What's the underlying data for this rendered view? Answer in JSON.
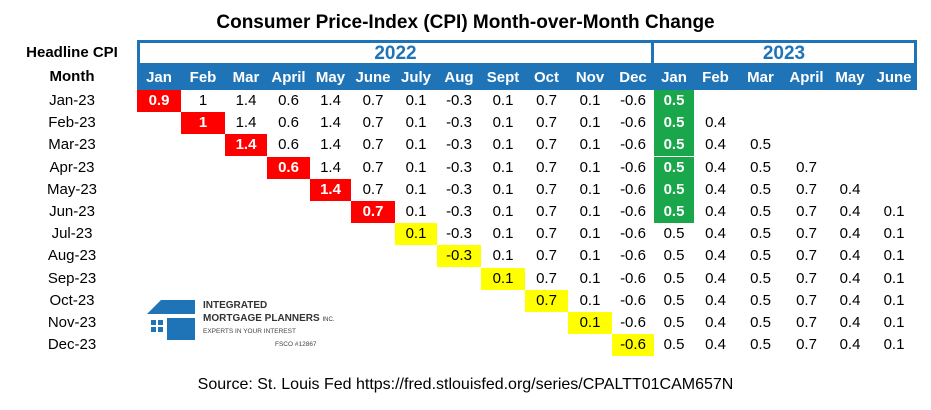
{
  "title": "Consumer Price-Index (CPI) Month-over-Month Change",
  "header_label_1": "Headline CPI",
  "header_label_2": "Month",
  "years": [
    "2022",
    "2023"
  ],
  "source": "Source: St. Louis Fed https://fred.stlouisfed.org/series/CPALTT01CAM657N",
  "logo": {
    "line1": "INTEGRATED",
    "line2": "MORTGAGE PLANNERS",
    "line2_suffix": "INC.",
    "tagline": "EXPERTS IN YOUR INTEREST",
    "license": "FSCO #12867"
  },
  "colors": {
    "header_blue": "#1f73b7",
    "red": "#ff0000",
    "yellow": "#ffff00",
    "green": "#1aa64a"
  },
  "chart_data": {
    "type": "table",
    "columns": [
      "Jan",
      "Feb",
      "Mar",
      "April",
      "May",
      "June",
      "July",
      "Aug",
      "Sept",
      "Oct",
      "Nov",
      "Dec",
      "Jan",
      "Feb",
      "Mar",
      "April",
      "May",
      "June"
    ],
    "column_years": [
      "2022",
      "2022",
      "2022",
      "2022",
      "2022",
      "2022",
      "2022",
      "2022",
      "2022",
      "2022",
      "2022",
      "2022",
      "2023",
      "2023",
      "2023",
      "2023",
      "2023",
      "2023"
    ],
    "rows": [
      {
        "label": "Jan-23",
        "values": [
          "0.9",
          "1",
          "1.4",
          "0.6",
          "1.4",
          "0.7",
          "0.1",
          "-0.3",
          "0.1",
          "0.7",
          "0.1",
          "-0.6",
          "0.5"
        ]
      },
      {
        "label": "Feb-23",
        "values": [
          "1",
          "1.4",
          "0.6",
          "1.4",
          "0.7",
          "0.1",
          "-0.3",
          "0.1",
          "0.7",
          "0.1",
          "-0.6",
          "0.5",
          "0.4"
        ]
      },
      {
        "label": "Mar-23",
        "values": [
          "1.4",
          "0.6",
          "1.4",
          "0.7",
          "0.1",
          "-0.3",
          "0.1",
          "0.7",
          "0.1",
          "-0.6",
          "0.5",
          "0.4",
          "0.5"
        ]
      },
      {
        "label": "Apr-23",
        "values": [
          "0.6",
          "1.4",
          "0.7",
          "0.1",
          "-0.3",
          "0.1",
          "0.7",
          "0.1",
          "-0.6",
          "0.5",
          "0.4",
          "0.5",
          "0.7"
        ]
      },
      {
        "label": "May-23",
        "values": [
          "1.4",
          "0.7",
          "0.1",
          "-0.3",
          "0.1",
          "0.7",
          "0.1",
          "-0.6",
          "0.5",
          "0.4",
          "0.5",
          "0.7",
          "0.4"
        ]
      },
      {
        "label": "Jun-23",
        "values": [
          "0.7",
          "0.1",
          "-0.3",
          "0.1",
          "0.7",
          "0.1",
          "-0.6",
          "0.5",
          "0.4",
          "0.5",
          "0.7",
          "0.4",
          "0.1"
        ]
      },
      {
        "label": "Jul-23",
        "values": [
          "0.1",
          "-0.3",
          "0.1",
          "0.7",
          "0.1",
          "-0.6",
          "0.5",
          "0.4",
          "0.5",
          "0.7",
          "0.4",
          "0.1"
        ]
      },
      {
        "label": "Aug-23",
        "values": [
          "-0.3",
          "0.1",
          "0.7",
          "0.1",
          "-0.6",
          "0.5",
          "0.4",
          "0.5",
          "0.7",
          "0.4",
          "0.1"
        ]
      },
      {
        "label": "Sep-23",
        "values": [
          "0.1",
          "0.7",
          "0.1",
          "-0.6",
          "0.5",
          "0.4",
          "0.5",
          "0.7",
          "0.4",
          "0.1"
        ]
      },
      {
        "label": "Oct-23",
        "values": [
          "0.7",
          "0.1",
          "-0.6",
          "0.5",
          "0.4",
          "0.5",
          "0.7",
          "0.4",
          "0.1"
        ]
      },
      {
        "label": "Nov-23",
        "values": [
          "0.1",
          "-0.6",
          "0.5",
          "0.4",
          "0.5",
          "0.7",
          "0.4",
          "0.1"
        ]
      },
      {
        "label": "Dec-23",
        "values": [
          "-0.6",
          "0.5",
          "0.4",
          "0.5",
          "0.7",
          "0.4",
          "0.1"
        ]
      }
    ],
    "row_start_columns": [
      0,
      1,
      2,
      3,
      4,
      5,
      6,
      7,
      8,
      9,
      10,
      11
    ],
    "highlights": {
      "red": [
        [
          0,
          0
        ],
        [
          1,
          0
        ],
        [
          2,
          0
        ],
        [
          3,
          0
        ],
        [
          4,
          0
        ],
        [
          5,
          0
        ]
      ],
      "yellow": [
        [
          6,
          0
        ],
        [
          7,
          0
        ],
        [
          8,
          0
        ],
        [
          9,
          0
        ],
        [
          10,
          0
        ],
        [
          11,
          0
        ]
      ],
      "green": [
        [
          0,
          12
        ],
        [
          1,
          11
        ],
        [
          2,
          10
        ],
        [
          3,
          9
        ],
        [
          4,
          8
        ],
        [
          5,
          7
        ]
      ]
    }
  }
}
